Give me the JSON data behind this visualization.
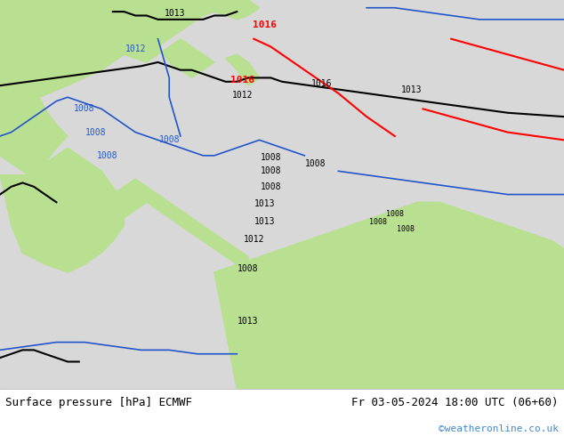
{
  "title_left": "Surface pressure [hPa] ECMWF",
  "title_right": "Fr 03-05-2024 18:00 UTC (06+60)",
  "credit": "©weatheronline.co.uk",
  "bg_color": "#d8d8d8",
  "land_color": "#b8e090",
  "coast_color": "#888888",
  "figsize": [
    6.34,
    4.9
  ],
  "dpi": 100,
  "footer_fontsize": 9,
  "credit_color": "#4488cc",
  "black_isobar_lw": 1.5,
  "blue_isobar_lw": 1.2,
  "red_isobar_lw": 1.5
}
